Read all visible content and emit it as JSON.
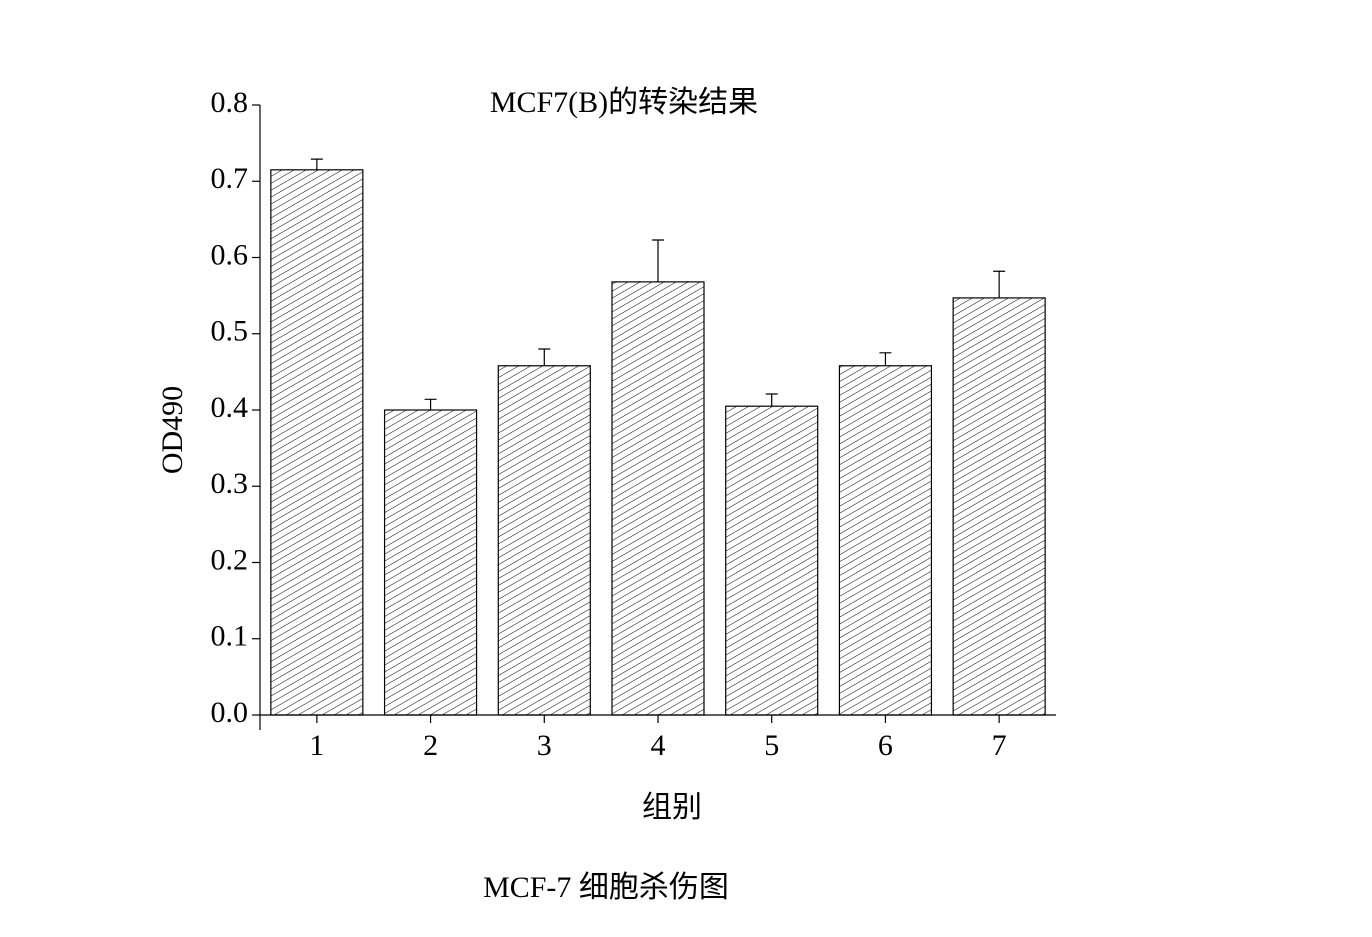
{
  "chart_data": {
    "type": "bar",
    "title": "MCF7(B)的转染结果",
    "categories": [
      "1",
      "2",
      "3",
      "4",
      "5",
      "6",
      "7"
    ],
    "values": [
      0.715,
      0.4,
      0.458,
      0.568,
      0.405,
      0.458,
      0.547
    ],
    "errors": [
      0.014,
      0.014,
      0.022,
      0.055,
      0.016,
      0.017,
      0.035
    ],
    "color": "#000000",
    "xlabel": "组别",
    "ylabel": "OD490",
    "ylim": [
      0,
      0.8
    ],
    "yticks": [
      {
        "value": 0,
        "label": "0.0"
      },
      0.1,
      0.2,
      0.3,
      0.4,
      0.5,
      0.6,
      0.7,
      0.8
    ],
    "caption": "MCF-7 细胞杀伤图"
  }
}
